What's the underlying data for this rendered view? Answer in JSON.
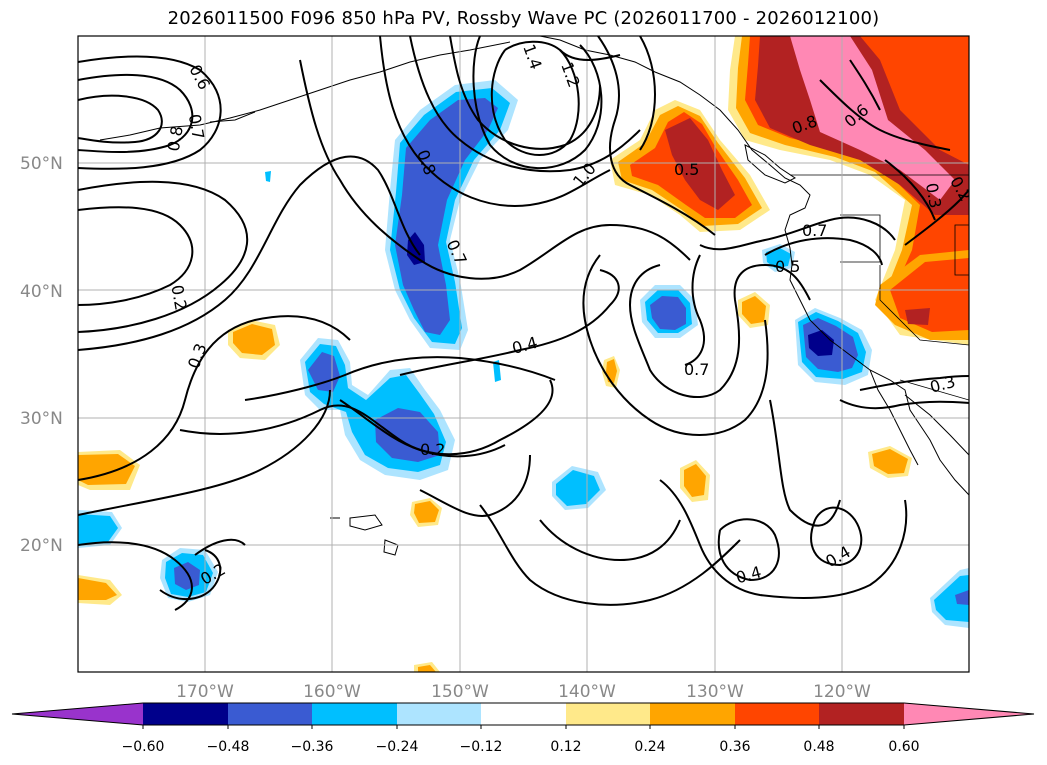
{
  "title": "2026011500 F096 850 hPa PV, Rossby Wave PC (2026011700 - 2026012100)",
  "lat_labels": [
    "50°N",
    "40°N",
    "30°N",
    "20°N"
  ],
  "lon_labels": [
    "170°W",
    "160°W",
    "150°W",
    "140°W",
    "130°W",
    "120°W"
  ],
  "colorbar": {
    "tick_labels": [
      "−0.60",
      "−0.48",
      "−0.36",
      "−0.24",
      "−0.12",
      "0.12",
      "0.24",
      "0.36",
      "0.48",
      "0.60"
    ],
    "colors": [
      "#9933cc",
      "#00008b",
      "#3a5bd2",
      "#00bfff",
      "#ade4ff",
      "#ffffff",
      "#ffe98a",
      "#ffa500",
      "#ff4500",
      "#b22222",
      "#ff88b4"
    ]
  },
  "contour_labels": [
    "0.6",
    "0.7",
    "0.8",
    "1.4",
    "1.2",
    "1.0",
    "0.8",
    "0.7",
    "0.5",
    "0.8",
    "0.6",
    "0.7",
    "0.5",
    "0.3",
    "0.2",
    "0.2",
    "0.3",
    "0.4",
    "0.7",
    "0.2",
    "0.3",
    "0.4",
    "0.4",
    "0.2"
  ]
}
